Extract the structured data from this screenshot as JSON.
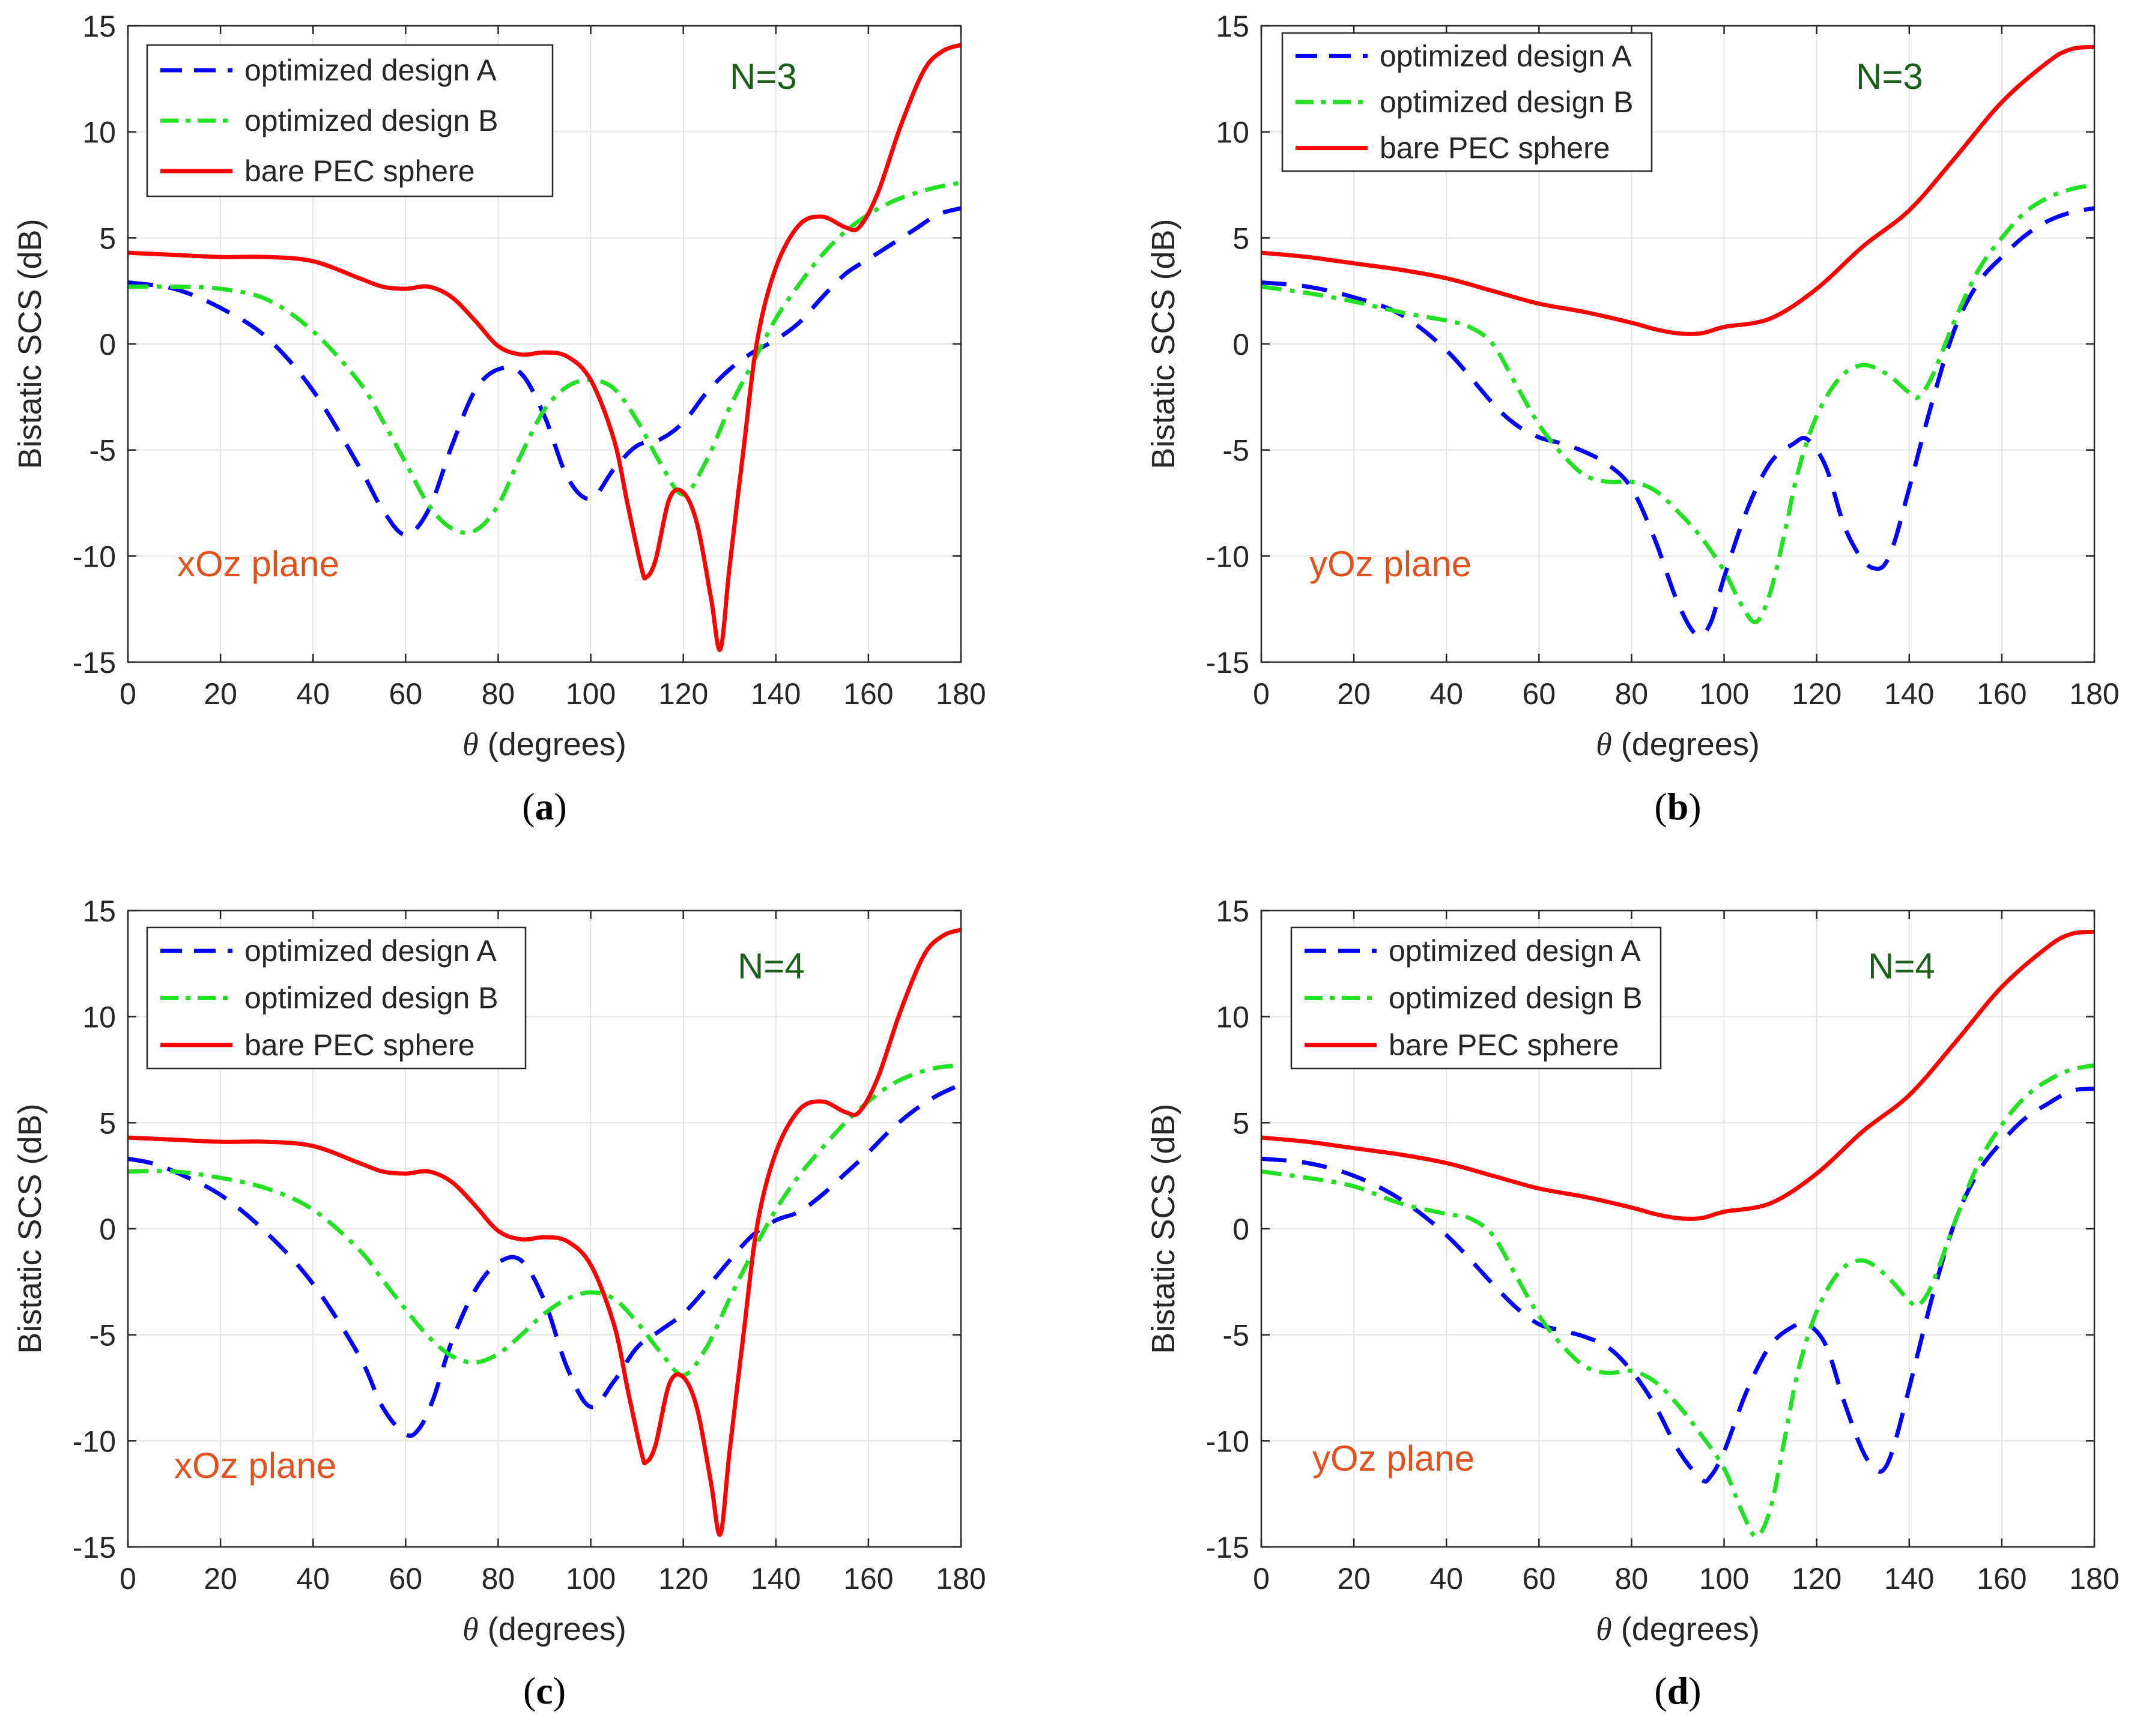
{
  "chart_data": [
    {
      "type": "line",
      "panel_label": "(a)",
      "panel_letter": "a",
      "xlabel_symbol": "θ",
      "xlabel_rest": " (degrees)",
      "ylabel": "Bistatic SCS (dB)",
      "xlim": [
        0,
        180
      ],
      "ylim": [
        -15,
        15
      ],
      "xticks": [
        0,
        20,
        40,
        60,
        80,
        100,
        120,
        140,
        160,
        180
      ],
      "yticks": [
        -15,
        -10,
        -5,
        0,
        5,
        10,
        15
      ],
      "grid": true,
      "legend_position": "top-left",
      "annotations": [
        {
          "id": "n",
          "text": "N=3",
          "color": "#1a5e1a"
        },
        {
          "id": "plane",
          "text": "xOz plane",
          "color": "#e0531f"
        }
      ],
      "series": [
        {
          "name": "optimized design A",
          "color": "#0000ff",
          "style": "dashed",
          "x": [
            0,
            10,
            20,
            30,
            40,
            50,
            55,
            60,
            65,
            70,
            75,
            80,
            85,
            90,
            95,
            100,
            105,
            110,
            115,
            120,
            125,
            130,
            135,
            140,
            145,
            150,
            155,
            160,
            165,
            170,
            175,
            180
          ],
          "y": [
            2.9,
            2.6,
            1.7,
            0.3,
            -2.2,
            -5.8,
            -7.8,
            -9.0,
            -7.8,
            -4.8,
            -2.2,
            -1.2,
            -1.4,
            -3.4,
            -6.3,
            -7.3,
            -5.9,
            -4.8,
            -4.5,
            -3.7,
            -2.3,
            -1.2,
            -0.4,
            0.2,
            1.0,
            2.2,
            3.3,
            4.0,
            4.7,
            5.4,
            6.1,
            6.4
          ]
        },
        {
          "name": "optimized design B",
          "color": "#22e022",
          "style": "dashdot",
          "x": [
            0,
            10,
            20,
            30,
            40,
            50,
            55,
            60,
            65,
            70,
            75,
            80,
            85,
            90,
            95,
            100,
            105,
            110,
            115,
            120,
            125,
            130,
            135,
            140,
            145,
            150,
            155,
            160,
            165,
            170,
            175,
            180
          ],
          "y": [
            2.7,
            2.7,
            2.6,
            2.1,
            0.6,
            -1.8,
            -3.6,
            -5.6,
            -7.6,
            -8.7,
            -8.8,
            -7.6,
            -5.2,
            -3.1,
            -2.0,
            -1.7,
            -2.1,
            -3.6,
            -5.6,
            -7.1,
            -5.5,
            -3.0,
            -0.9,
            1.2,
            2.8,
            4.2,
            5.3,
            6.1,
            6.7,
            7.1,
            7.4,
            7.6
          ]
        },
        {
          "name": "bare PEC sphere",
          "color": "#ff0000",
          "style": "solid",
          "x": [
            0,
            10,
            20,
            30,
            40,
            50,
            55,
            60,
            65,
            70,
            75,
            80,
            85,
            90,
            95,
            100,
            105,
            108,
            111,
            112,
            114,
            117,
            120,
            123,
            126,
            128,
            130,
            133,
            136,
            140,
            145,
            150,
            155,
            158,
            162,
            167,
            172,
            176,
            180
          ],
          "y": [
            4.3,
            4.2,
            4.1,
            4.1,
            3.9,
            3.1,
            2.7,
            2.6,
            2.7,
            2.2,
            1.1,
            -0.1,
            -0.5,
            -0.4,
            -0.6,
            -1.7,
            -4.5,
            -7.6,
            -10.6,
            -11.0,
            -10.2,
            -7.3,
            -7.0,
            -8.5,
            -12.0,
            -14.4,
            -10.5,
            -5.0,
            0.2,
            3.6,
            5.6,
            6.0,
            5.5,
            5.5,
            7.1,
            10.3,
            12.9,
            13.8,
            14.1
          ]
        }
      ]
    },
    {
      "type": "line",
      "panel_label": "(b)",
      "panel_letter": "b",
      "xlabel_symbol": "θ",
      "xlabel_rest": " (degrees)",
      "ylabel": "Bistatic SCS (dB)",
      "xlim": [
        0,
        180
      ],
      "ylim": [
        -15,
        15
      ],
      "xticks": [
        0,
        20,
        40,
        60,
        80,
        100,
        120,
        140,
        160,
        180
      ],
      "yticks": [
        -15,
        -10,
        -5,
        0,
        5,
        10,
        15
      ],
      "grid": true,
      "legend_position": "top-left",
      "annotations": [
        {
          "id": "n",
          "text": "N=3",
          "color": "#1a5e1a"
        },
        {
          "id": "plane",
          "text": "yOz plane",
          "color": "#e0531f"
        }
      ],
      "series": [
        {
          "name": "optimized design A",
          "color": "#0000ff",
          "style": "dashed",
          "x": [
            0,
            10,
            20,
            30,
            40,
            50,
            55,
            60,
            65,
            70,
            75,
            80,
            85,
            90,
            94,
            97,
            100,
            105,
            110,
            115,
            118,
            122,
            126,
            130,
            133,
            135,
            137,
            140,
            145,
            150,
            155,
            160,
            165,
            170,
            175,
            180
          ],
          "y": [
            2.9,
            2.7,
            2.2,
            1.4,
            -0.3,
            -2.8,
            -3.8,
            -4.4,
            -4.7,
            -5.1,
            -5.7,
            -6.8,
            -9.2,
            -12.2,
            -13.7,
            -13.2,
            -11.0,
            -7.8,
            -5.6,
            -4.7,
            -4.5,
            -5.8,
            -8.6,
            -10.2,
            -10.6,
            -10.3,
            -9.2,
            -6.8,
            -2.7,
            0.8,
            2.9,
            4.1,
            5.1,
            5.8,
            6.2,
            6.4
          ]
        },
        {
          "name": "optimized design B",
          "color": "#22e022",
          "style": "dashdot",
          "x": [
            0,
            10,
            20,
            30,
            40,
            45,
            50,
            55,
            60,
            65,
            70,
            75,
            80,
            85,
            90,
            95,
            100,
            104,
            107,
            110,
            113,
            116,
            120,
            125,
            130,
            135,
            140,
            142,
            145,
            150,
            155,
            160,
            165,
            170,
            175,
            180
          ],
          "y": [
            2.7,
            2.4,
            2.0,
            1.5,
            1.1,
            0.8,
            0.0,
            -1.9,
            -3.8,
            -5.2,
            -6.2,
            -6.5,
            -6.5,
            -6.9,
            -7.9,
            -9.1,
            -10.7,
            -12.4,
            -13.1,
            -11.7,
            -9.0,
            -6.0,
            -3.4,
            -1.6,
            -1.0,
            -1.4,
            -2.3,
            -2.5,
            -1.5,
            1.2,
            3.5,
            5.0,
            6.2,
            6.9,
            7.3,
            7.5
          ]
        },
        {
          "name": "bare PEC sphere",
          "color": "#ff0000",
          "style": "solid",
          "x": [
            0,
            10,
            20,
            30,
            40,
            50,
            60,
            70,
            80,
            85,
            90,
            95,
            100,
            110,
            120,
            130,
            140,
            150,
            160,
            170,
            175,
            180
          ],
          "y": [
            4.3,
            4.1,
            3.8,
            3.5,
            3.1,
            2.5,
            1.9,
            1.5,
            1.0,
            0.7,
            0.5,
            0.5,
            0.8,
            1.2,
            2.6,
            4.6,
            6.3,
            8.8,
            11.4,
            13.3,
            13.9,
            14.0
          ]
        }
      ]
    },
    {
      "type": "line",
      "panel_label": "(c)",
      "panel_letter": "c",
      "xlabel_symbol": "θ",
      "xlabel_rest": " (degrees)",
      "ylabel": "Bistatic SCS (dB)",
      "xlim": [
        0,
        180
      ],
      "ylim": [
        -15,
        15
      ],
      "xticks": [
        0,
        20,
        40,
        60,
        80,
        100,
        120,
        140,
        160,
        180
      ],
      "yticks": [
        -15,
        -10,
        -5,
        0,
        5,
        10,
        15
      ],
      "grid": true,
      "legend_position": "top-left",
      "annotations": [
        {
          "id": "n",
          "text": "N=4",
          "color": "#1a5e1a"
        },
        {
          "id": "plane",
          "text": "xOz plane",
          "color": "#e0531f"
        }
      ],
      "series": [
        {
          "name": "optimized design A",
          "color": "#0000ff",
          "style": "dashed",
          "x": [
            0,
            5,
            10,
            20,
            30,
            40,
            50,
            55,
            60,
            63,
            66,
            70,
            75,
            80,
            85,
            90,
            95,
            100,
            105,
            110,
            115,
            120,
            125,
            130,
            135,
            140,
            145,
            150,
            155,
            160,
            165,
            170,
            175,
            180
          ],
          "y": [
            3.3,
            3.1,
            2.7,
            1.6,
            -0.2,
            -2.6,
            -6.0,
            -8.4,
            -9.7,
            -9.4,
            -8.0,
            -5.3,
            -2.9,
            -1.6,
            -1.5,
            -3.4,
            -6.6,
            -8.4,
            -7.2,
            -5.6,
            -4.8,
            -4.0,
            -2.8,
            -1.5,
            -0.3,
            0.4,
            0.8,
            1.6,
            2.6,
            3.6,
            4.7,
            5.6,
            6.3,
            6.8
          ]
        },
        {
          "name": "optimized design B",
          "color": "#22e022",
          "style": "dashdot",
          "x": [
            0,
            10,
            20,
            30,
            40,
            50,
            55,
            60,
            65,
            70,
            75,
            80,
            85,
            90,
            95,
            100,
            105,
            110,
            115,
            120,
            125,
            130,
            135,
            140,
            145,
            150,
            155,
            160,
            165,
            170,
            175,
            180
          ],
          "y": [
            2.7,
            2.7,
            2.4,
            1.9,
            0.9,
            -1.0,
            -2.4,
            -3.8,
            -5.1,
            -6.0,
            -6.3,
            -5.9,
            -5.0,
            -4.0,
            -3.3,
            -3.0,
            -3.3,
            -4.4,
            -5.8,
            -6.9,
            -5.6,
            -3.3,
            -1.1,
            0.9,
            2.5,
            3.8,
            5.0,
            6.0,
            6.8,
            7.3,
            7.6,
            7.7
          ]
        },
        {
          "name": "bare PEC sphere",
          "color": "#ff0000",
          "style": "solid",
          "x": [
            0,
            10,
            20,
            30,
            40,
            50,
            55,
            60,
            65,
            70,
            75,
            80,
            85,
            90,
            95,
            100,
            105,
            108,
            111,
            112,
            114,
            117,
            120,
            123,
            126,
            128,
            130,
            133,
            136,
            140,
            145,
            150,
            155,
            158,
            162,
            167,
            172,
            176,
            180
          ],
          "y": [
            4.3,
            4.2,
            4.1,
            4.1,
            3.9,
            3.1,
            2.7,
            2.6,
            2.7,
            2.2,
            1.1,
            -0.1,
            -0.5,
            -0.4,
            -0.6,
            -1.7,
            -4.5,
            -7.6,
            -10.6,
            -11.0,
            -10.2,
            -7.3,
            -7.0,
            -8.5,
            -12.0,
            -14.4,
            -10.5,
            -5.0,
            0.2,
            3.6,
            5.6,
            6.0,
            5.5,
            5.5,
            7.1,
            10.3,
            12.9,
            13.8,
            14.1
          ]
        }
      ]
    },
    {
      "type": "line",
      "panel_label": "(d)",
      "panel_letter": "d",
      "xlabel_symbol": "θ",
      "xlabel_rest": " (degrees)",
      "ylabel": "Bistatic SCS (dB)",
      "xlim": [
        0,
        180
      ],
      "ylim": [
        -15,
        15
      ],
      "xticks": [
        0,
        20,
        40,
        60,
        80,
        100,
        120,
        140,
        160,
        180
      ],
      "yticks": [
        -15,
        -10,
        -5,
        0,
        5,
        10,
        15
      ],
      "grid": true,
      "legend_position": "top-left",
      "annotations": [
        {
          "id": "n",
          "text": "N=4",
          "color": "#1a5e1a"
        },
        {
          "id": "plane",
          "text": "yOz plane",
          "color": "#e0531f"
        }
      ],
      "series": [
        {
          "name": "optimized design A",
          "color": "#0000ff",
          "style": "dashed",
          "x": [
            0,
            10,
            20,
            30,
            40,
            50,
            55,
            60,
            65,
            70,
            75,
            80,
            85,
            90,
            95,
            97,
            100,
            105,
            110,
            115,
            118,
            122,
            126,
            130,
            133,
            135,
            137,
            140,
            145,
            150,
            155,
            160,
            165,
            170,
            175,
            180
          ],
          "y": [
            3.3,
            3.1,
            2.5,
            1.4,
            -0.3,
            -2.6,
            -3.7,
            -4.5,
            -4.8,
            -5.1,
            -5.6,
            -6.7,
            -8.3,
            -10.4,
            -11.8,
            -11.7,
            -10.5,
            -7.6,
            -5.5,
            -4.6,
            -4.5,
            -5.5,
            -8.2,
            -10.5,
            -11.4,
            -11.2,
            -10.0,
            -7.5,
            -3.2,
            0.4,
            2.7,
            4.1,
            5.2,
            5.9,
            6.5,
            6.6
          ]
        },
        {
          "name": "optimized design B",
          "color": "#22e022",
          "style": "dashdot",
          "x": [
            0,
            10,
            20,
            30,
            40,
            45,
            50,
            55,
            60,
            65,
            70,
            75,
            80,
            85,
            90,
            95,
            100,
            104,
            107,
            110,
            113,
            116,
            120,
            125,
            130,
            135,
            140,
            142,
            145,
            150,
            155,
            160,
            165,
            170,
            175,
            180
          ],
          "y": [
            2.7,
            2.4,
            2.0,
            1.2,
            0.7,
            0.5,
            -0.3,
            -2.2,
            -4.1,
            -5.5,
            -6.5,
            -6.8,
            -6.7,
            -7.2,
            -8.3,
            -9.7,
            -11.3,
            -13.4,
            -14.5,
            -13.2,
            -10.0,
            -6.7,
            -3.9,
            -2.0,
            -1.5,
            -2.2,
            -3.4,
            -3.6,
            -2.6,
            0.4,
            3.1,
            4.9,
            6.2,
            7.0,
            7.5,
            7.7
          ]
        },
        {
          "name": "bare PEC sphere",
          "color": "#ff0000",
          "style": "solid",
          "x": [
            0,
            10,
            20,
            30,
            40,
            50,
            60,
            70,
            80,
            85,
            90,
            95,
            100,
            110,
            120,
            130,
            140,
            150,
            160,
            170,
            175,
            180
          ],
          "y": [
            4.3,
            4.1,
            3.8,
            3.5,
            3.1,
            2.5,
            1.9,
            1.5,
            1.0,
            0.7,
            0.5,
            0.5,
            0.8,
            1.2,
            2.6,
            4.6,
            6.3,
            8.8,
            11.4,
            13.3,
            13.9,
            14.0
          ]
        }
      ]
    }
  ]
}
